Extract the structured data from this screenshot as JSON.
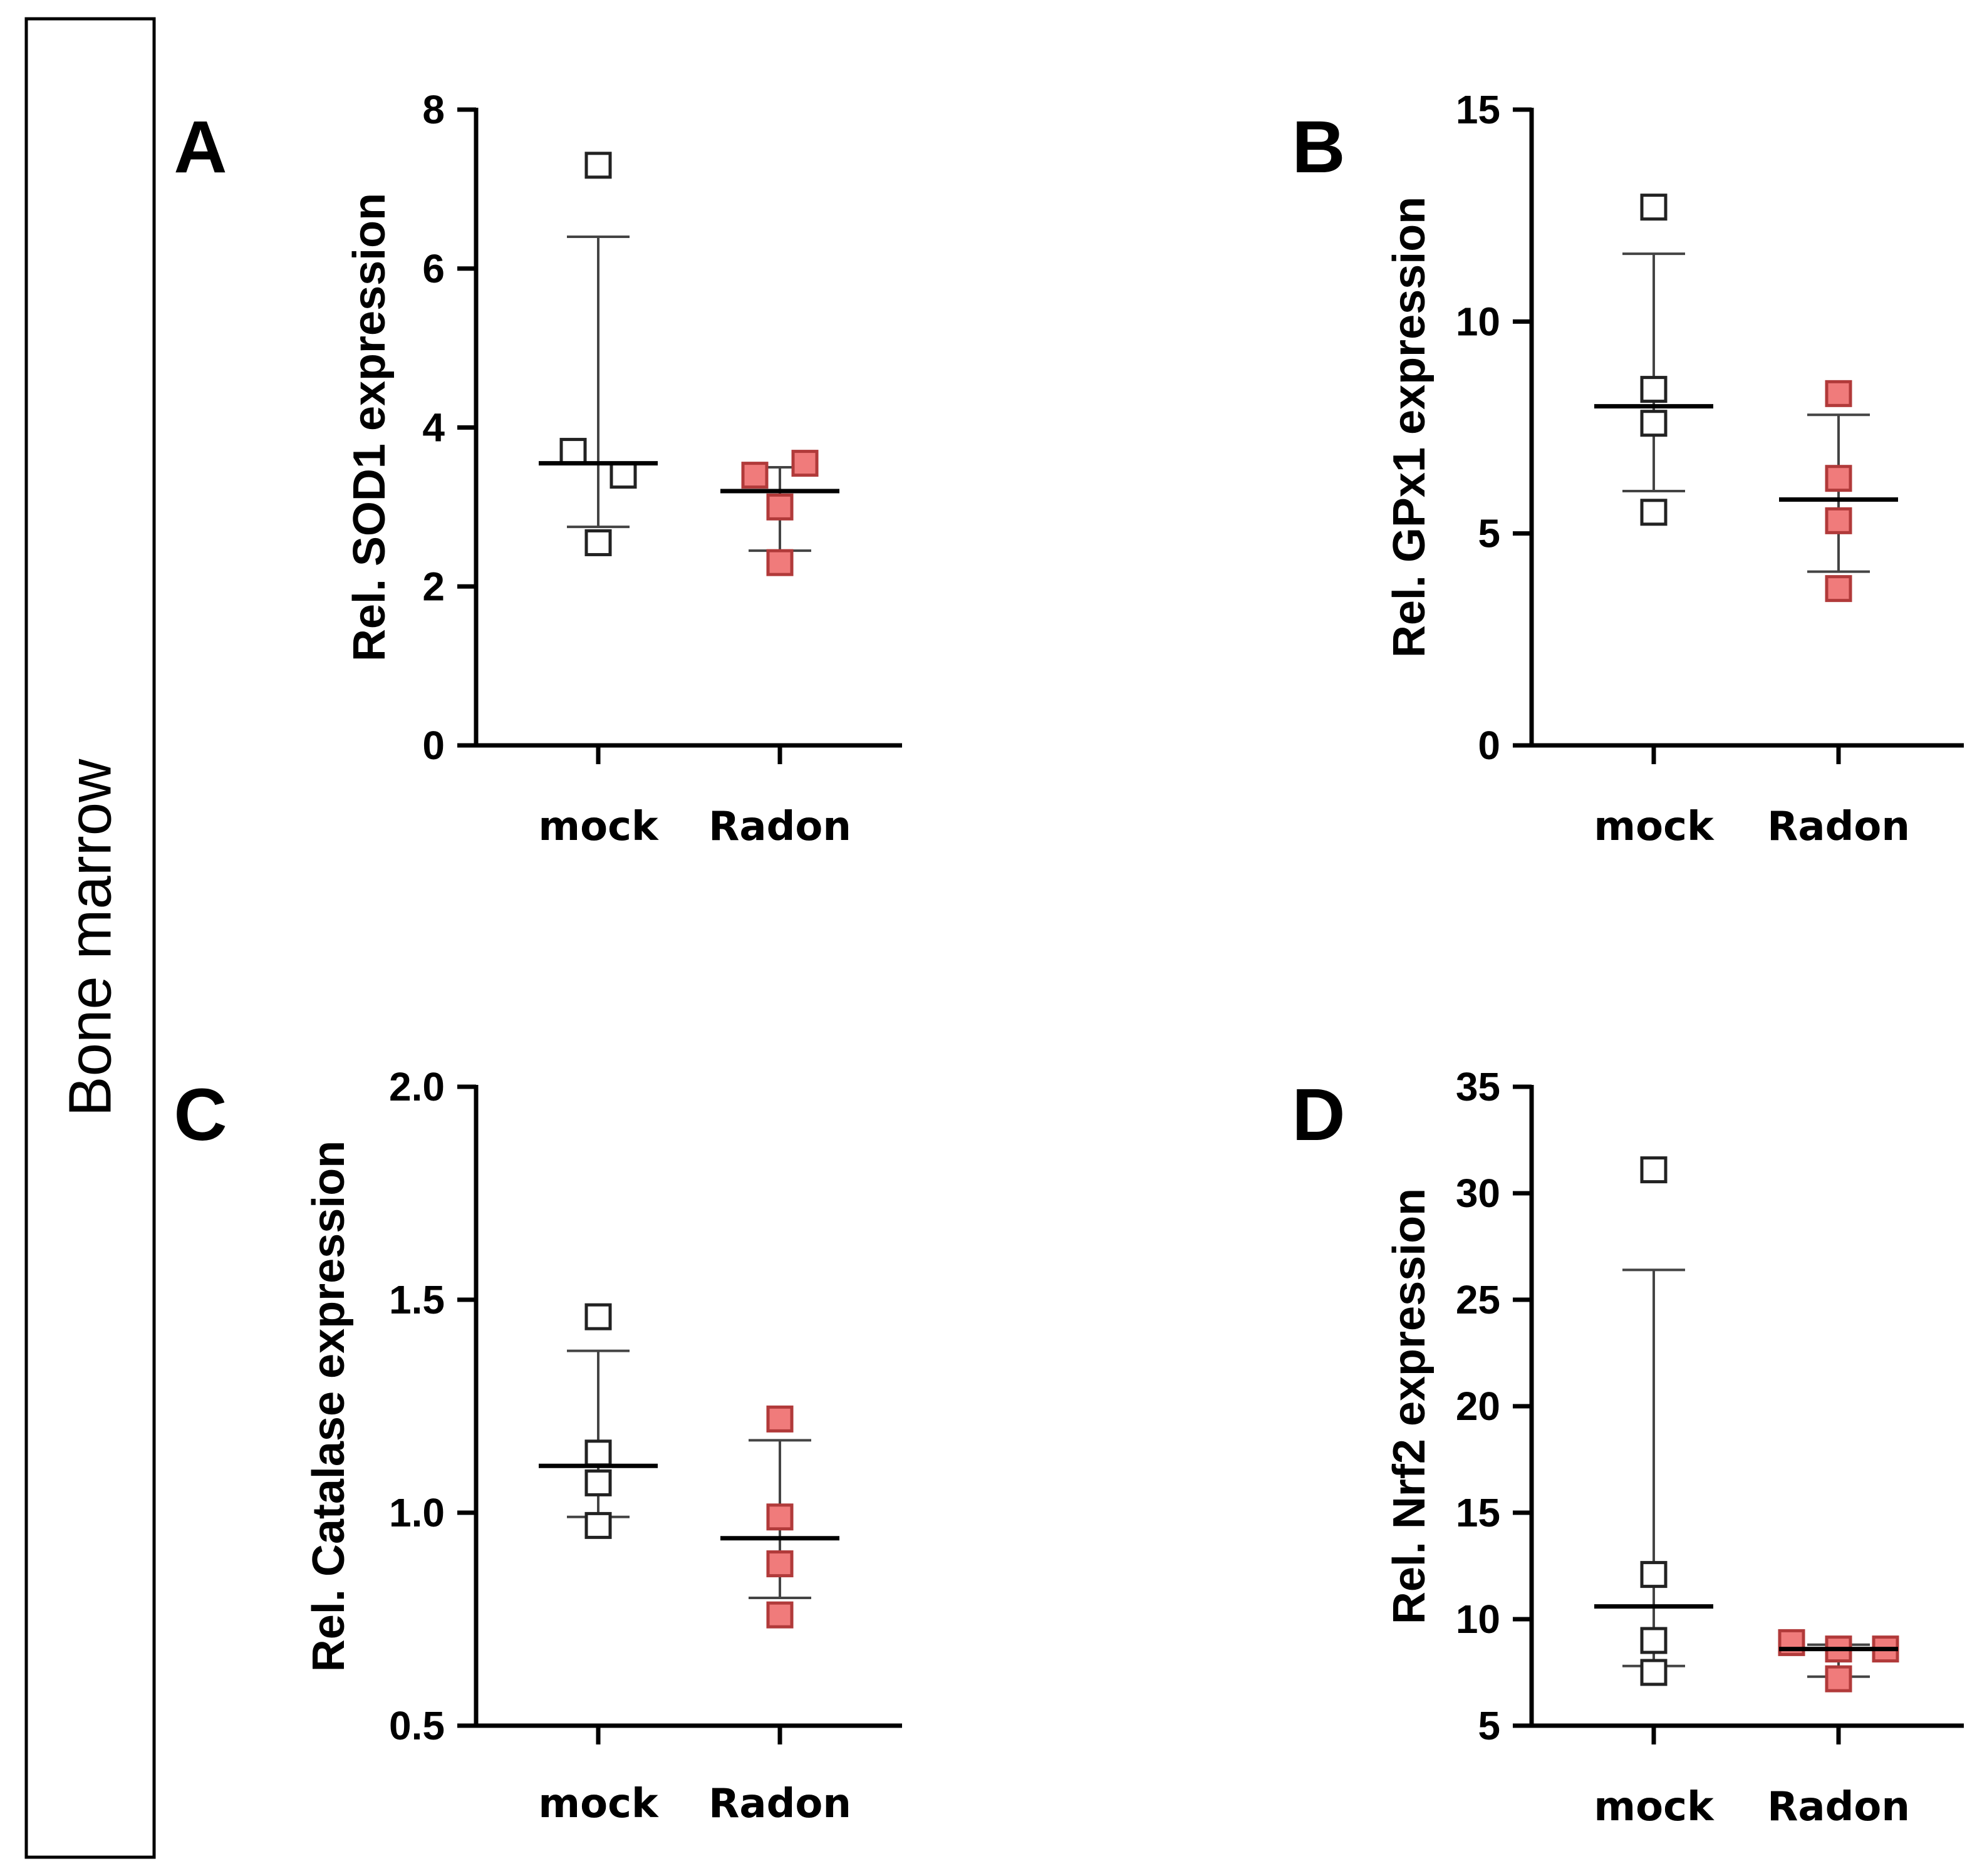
{
  "figure": {
    "side_label": "Bone marrow"
  },
  "colors": {
    "mock_fill": "#ffffff",
    "mock_stroke": "#222222",
    "radon_fill": "#f07b7b",
    "radon_stroke": "#b13a3a"
  },
  "chart_data": [
    {
      "panel": "A",
      "type": "scatter",
      "ylabel": "Rel. SOD1 expression",
      "xlabel": "",
      "categories": [
        "mock",
        "Radon"
      ],
      "ylim": [
        0,
        8
      ],
      "yticks": [
        0,
        2,
        4,
        6,
        8
      ],
      "ytick_labels": [
        "0",
        "2",
        "4",
        "6",
        "8"
      ],
      "series": [
        {
          "name": "mock",
          "points": [
            7.3,
            3.7,
            3.4,
            2.55
          ],
          "mean": 3.55,
          "sd_upper": 6.4,
          "sd_lower": 2.75
        },
        {
          "name": "Radon",
          "points": [
            3.4,
            3.55,
            3.0,
            2.3
          ],
          "mean": 3.2,
          "sd_upper": 3.5,
          "sd_lower": 2.45
        }
      ]
    },
    {
      "panel": "B",
      "type": "scatter",
      "ylabel": "Rel. GPx1 expression",
      "xlabel": "",
      "categories": [
        "mock",
        "Radon"
      ],
      "ylim": [
        0,
        15
      ],
      "yticks": [
        0,
        5,
        10,
        15
      ],
      "ytick_labels": [
        "0",
        "5",
        "10",
        "15"
      ],
      "series": [
        {
          "name": "mock",
          "points": [
            12.7,
            8.4,
            7.6,
            5.5
          ],
          "mean": 8.0,
          "sd_upper": 11.6,
          "sd_lower": 6.0
        },
        {
          "name": "Radon",
          "points": [
            8.3,
            6.3,
            5.3,
            3.7
          ],
          "mean": 5.8,
          "sd_upper": 7.8,
          "sd_lower": 4.1
        }
      ]
    },
    {
      "panel": "C",
      "type": "scatter",
      "ylabel": "Rel. Catalase expression",
      "xlabel": "",
      "categories": [
        "mock",
        "Radon"
      ],
      "ylim": [
        0.5,
        2.0
      ],
      "yticks": [
        0.5,
        1.0,
        1.5,
        2.0
      ],
      "ytick_labels": [
        "0.5",
        "1.0",
        "1.5",
        "2.0"
      ],
      "series": [
        {
          "name": "mock",
          "points": [
            1.46,
            1.14,
            1.07,
            0.97
          ],
          "mean": 1.11,
          "sd_upper": 1.38,
          "sd_lower": 0.99
        },
        {
          "name": "Radon",
          "points": [
            1.22,
            0.99,
            0.88,
            0.76
          ],
          "mean": 0.94,
          "sd_upper": 1.17,
          "sd_lower": 0.8
        }
      ]
    },
    {
      "panel": "D",
      "type": "scatter",
      "ylabel": "Rel. Nrf2 expression",
      "xlabel": "",
      "categories": [
        "mock",
        "Radon"
      ],
      "ylim": [
        5,
        35
      ],
      "yticks": [
        5,
        10,
        15,
        20,
        25,
        30,
        35
      ],
      "ytick_labels": [
        "5",
        "10",
        "15",
        "20",
        "25",
        "30",
        "35"
      ],
      "series": [
        {
          "name": "mock",
          "points": [
            31.1,
            12.1,
            9.0,
            7.5
          ],
          "mean": 10.6,
          "sd_upper": 26.4,
          "sd_lower": 7.8
        },
        {
          "name": "Radon",
          "points": [
            8.9,
            8.6,
            8.6,
            7.2
          ],
          "mean": 8.6,
          "sd_upper": 8.8,
          "sd_lower": 7.3
        }
      ]
    }
  ]
}
